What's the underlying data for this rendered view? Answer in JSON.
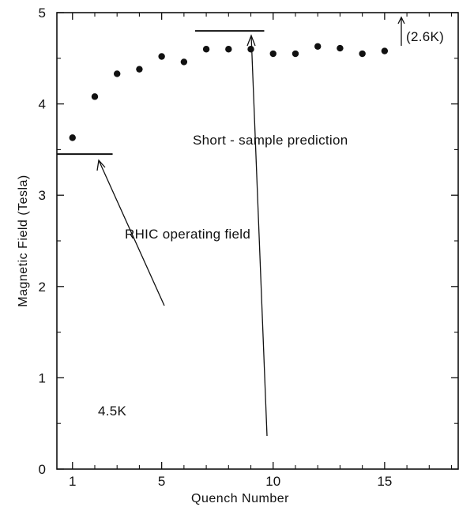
{
  "chart_data": {
    "type": "scatter",
    "xlabel": "Quench Number",
    "ylabel": "Magnetic Field (Tesla)",
    "xlim": [
      0.3,
      18.3
    ],
    "ylim": [
      0,
      5
    ],
    "x_ticks": [
      1,
      5,
      10,
      15
    ],
    "x_tick_labels": [
      "1",
      "5",
      "10",
      "15"
    ],
    "x_minor_ticks": [
      2,
      3,
      4,
      6,
      7,
      8,
      9,
      11,
      12,
      13,
      14,
      16,
      17,
      18
    ],
    "y_ticks": [
      0,
      1,
      2,
      3,
      4,
      5
    ],
    "y_tick_labels": [
      "0",
      "1",
      "2",
      "3",
      "4",
      "5"
    ],
    "y_minor_ticks": [
      0.5,
      1.5,
      2.5,
      3.5,
      4.5
    ],
    "grid": false,
    "legend": "none",
    "series": [
      {
        "points": [
          [
            1,
            3.63
          ],
          [
            2,
            4.08
          ],
          [
            3,
            4.33
          ],
          [
            4,
            4.38
          ],
          [
            5,
            4.52
          ],
          [
            6,
            4.46
          ],
          [
            7,
            4.6
          ],
          [
            8,
            4.6
          ],
          [
            9,
            4.6
          ],
          [
            10,
            4.55
          ],
          [
            11,
            4.55
          ],
          [
            12,
            4.63
          ],
          [
            13,
            4.61
          ],
          [
            14,
            4.55
          ],
          [
            15,
            4.58
          ]
        ]
      }
    ],
    "reference_lines": [
      {
        "label": "RHIC operating field",
        "y": 3.45,
        "x_from": 0.3,
        "x_to": 2.8
      },
      {
        "label": "Short-sample prediction",
        "y": 4.8,
        "x_from": 6.5,
        "x_to": 9.6
      }
    ],
    "annotations": {
      "rhic_label": "RHIC operating field",
      "short_sample_label": "Short - sample prediction",
      "temp_2_6": "(2.6K)",
      "temp_4_5": "4.5K"
    }
  }
}
